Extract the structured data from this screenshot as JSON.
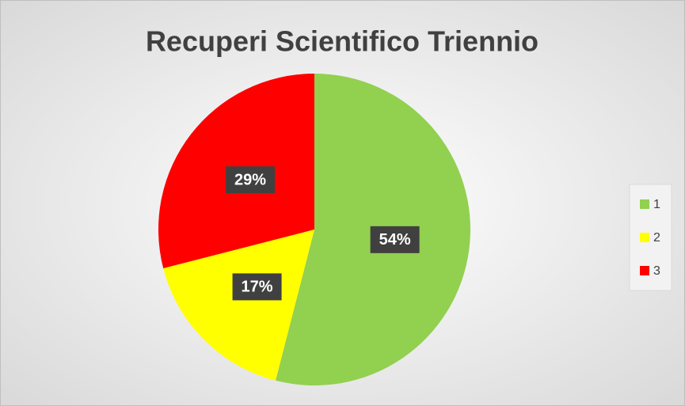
{
  "chart_data": {
    "type": "pie",
    "title": "Recuperi Scientifico Triennio",
    "categories": [
      "1",
      "2",
      "3"
    ],
    "values": [
      54,
      17,
      29
    ],
    "value_labels": [
      "54%",
      "17%",
      "29%"
    ],
    "colors": [
      "#92d050",
      "#ffff00",
      "#ff0000"
    ],
    "legend": "right"
  }
}
